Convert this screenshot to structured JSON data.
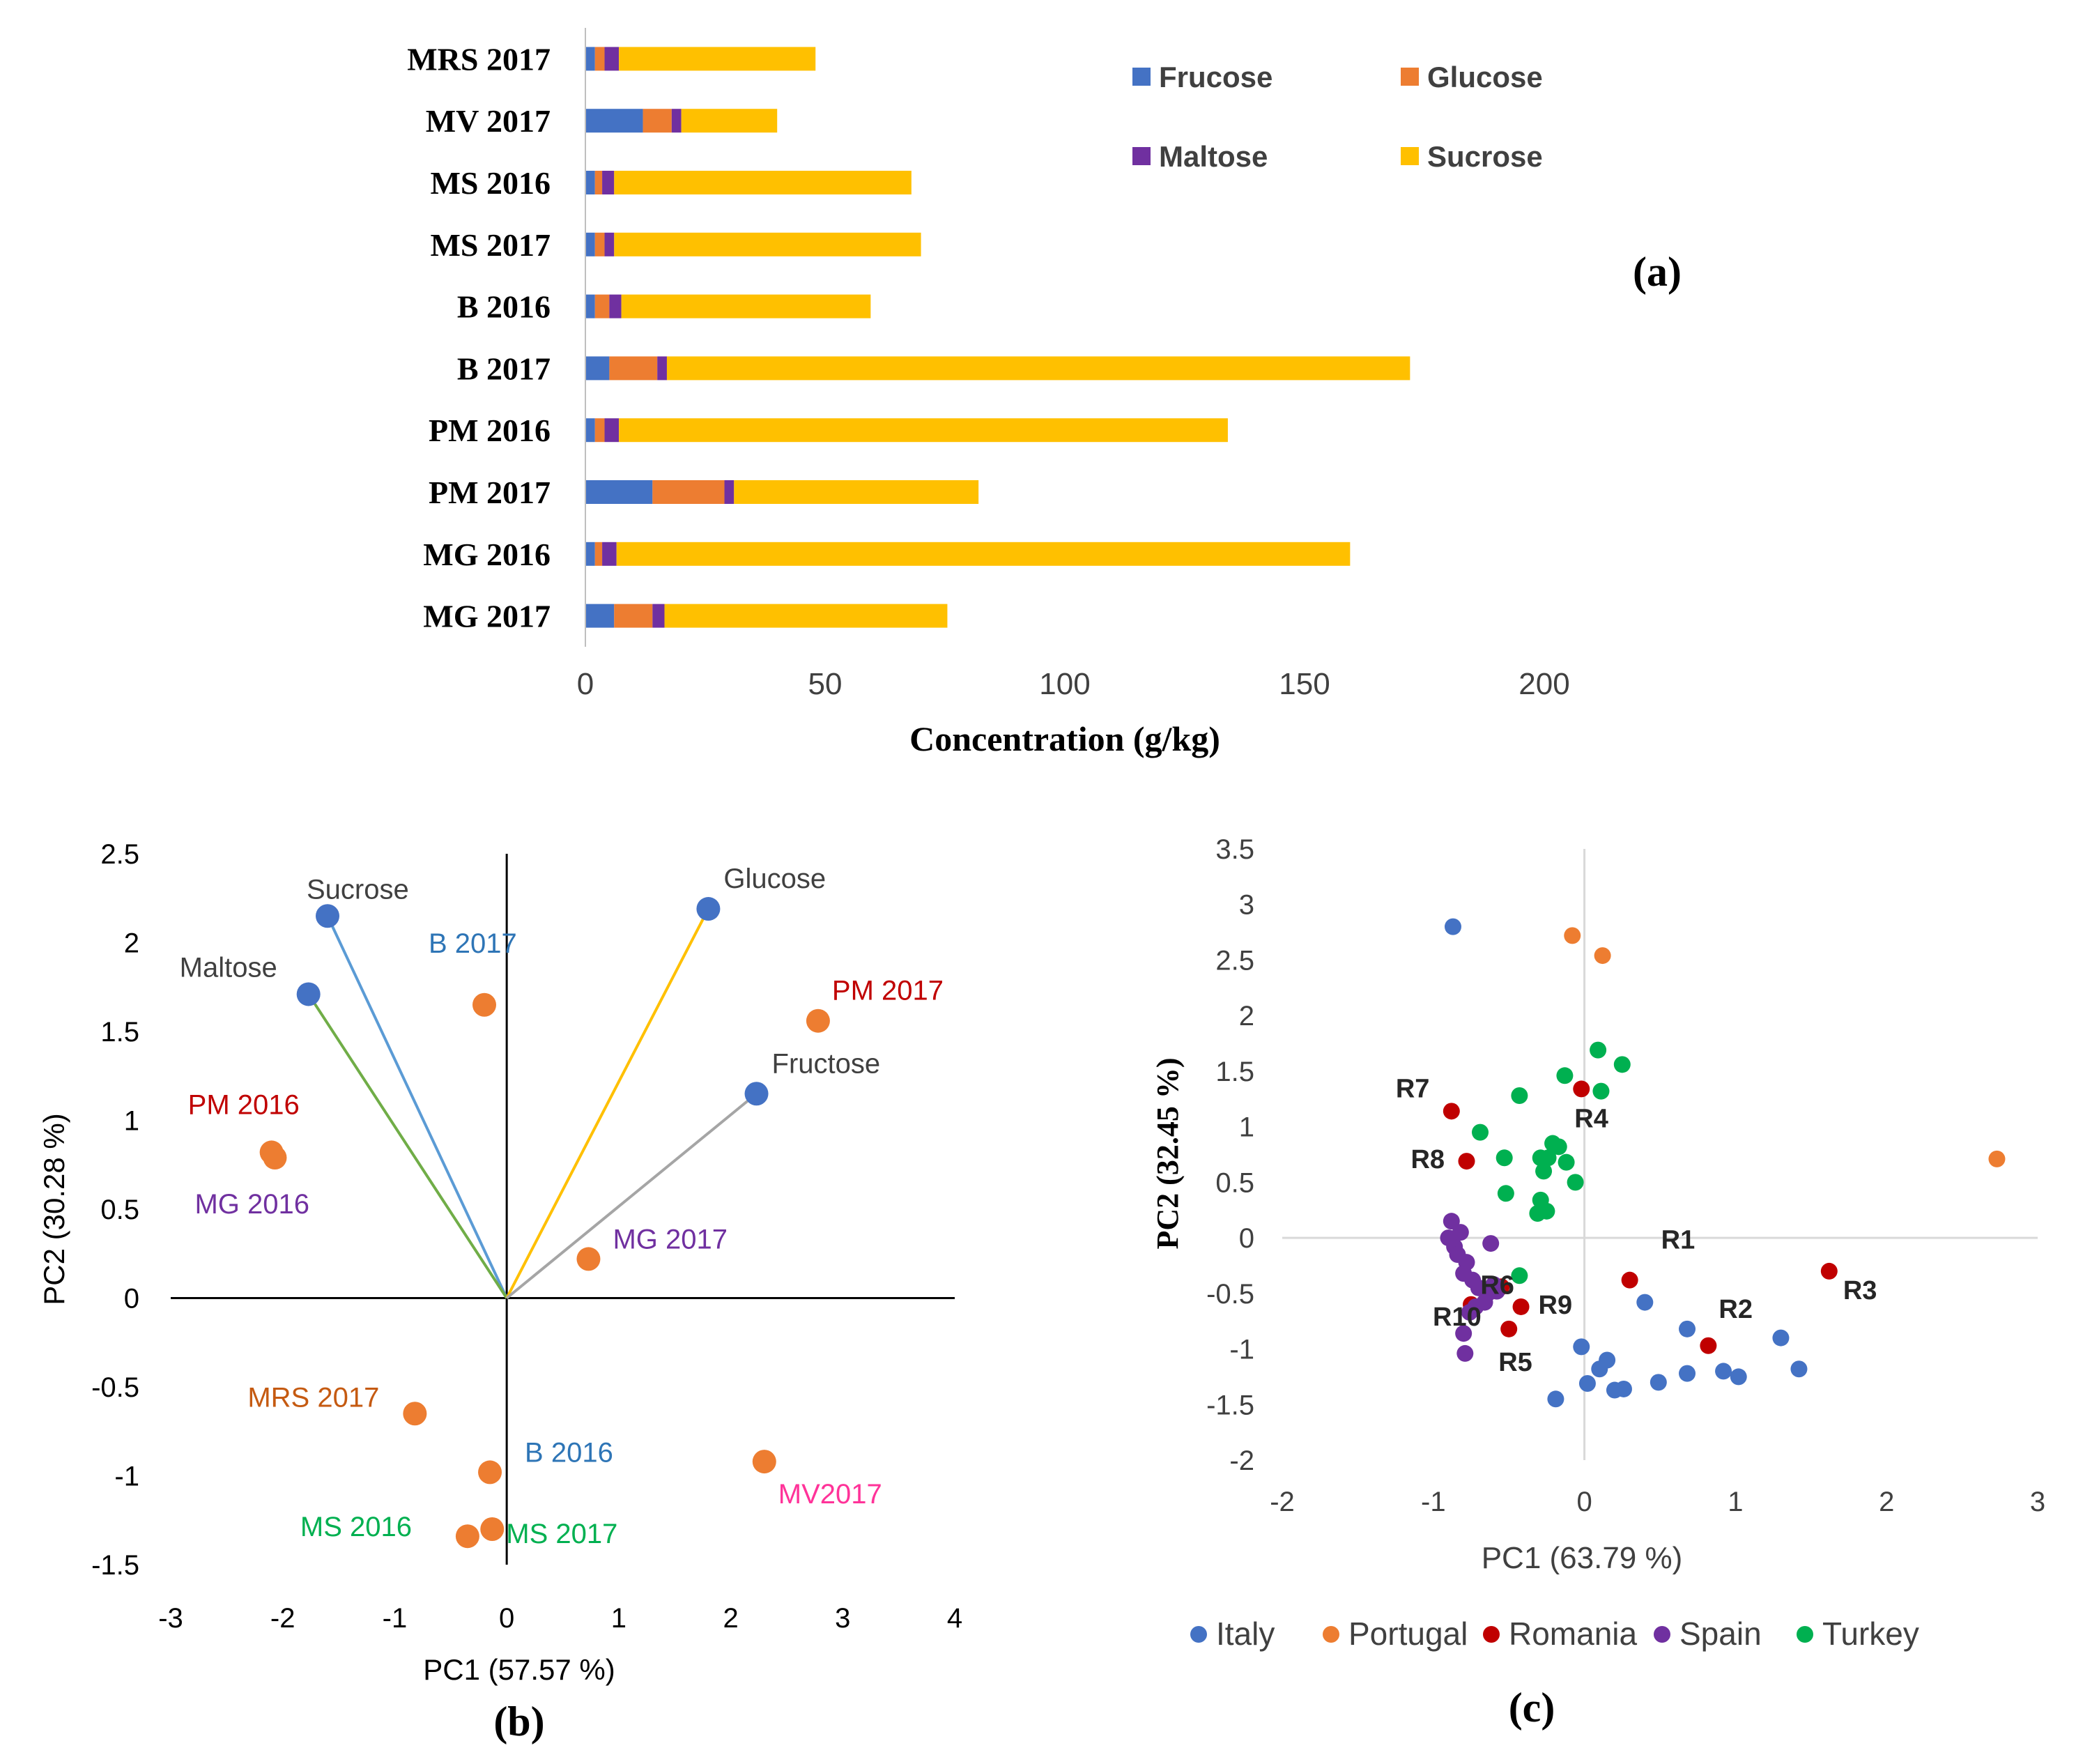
{
  "figure_labels": {
    "a": "(a)",
    "b": "(b)",
    "c": "(c)"
  },
  "chart_data": [
    {
      "id": "a",
      "type": "bar",
      "orientation": "horizontal",
      "stacked": true,
      "categories": [
        "MRS 2017",
        "MV 2017",
        "MS 2016",
        "MS 2017",
        "B 2016",
        "B 2017",
        "PM 2016",
        "PM 2017",
        "MG 2016",
        "MG 2017"
      ],
      "series": [
        {
          "name": "Frucose",
          "color": "#4472C4",
          "values": [
            2,
            12,
            2,
            2,
            2,
            5,
            2,
            14,
            2,
            6
          ]
        },
        {
          "name": "Glucose",
          "color": "#ED7D31",
          "values": [
            2,
            6,
            1.5,
            2,
            3,
            10,
            2,
            15,
            1.5,
            8
          ]
        },
        {
          "name": "Maltose",
          "color": "#7030A0",
          "values": [
            3,
            2,
            2.5,
            2,
            2.5,
            2,
            3,
            2,
            3,
            2.5
          ]
        },
        {
          "name": "Sucrose",
          "color": "#FFC000",
          "values": [
            41,
            20,
            62,
            64,
            52,
            155,
            127,
            51,
            153,
            59
          ]
        }
      ],
      "xlabel": "Concentration (g/kg)",
      "xlim": [
        0,
        200
      ],
      "xticks": [
        "0",
        "50",
        "100",
        "150",
        "200"
      ],
      "legend": "top-right, two columns"
    },
    {
      "id": "b",
      "type": "scatter",
      "title": "",
      "xlabel": "PC1 (57.57 %)",
      "ylabel": "PC2 (30.28 %)",
      "xlim": [
        -3,
        4
      ],
      "ylim": [
        -1.5,
        2.5
      ],
      "xticks": [
        "-3",
        "-2",
        "-1",
        "0",
        "1",
        "2",
        "3",
        "4"
      ],
      "yticks": [
        "-1.5",
        "-1",
        "-0.5",
        "0",
        "0.5",
        "1",
        "1.5",
        "2",
        "2.5"
      ],
      "loadings": [
        {
          "name": "Sucrose",
          "x": -1.6,
          "y": 2.15,
          "line_color": "#5B9BD5"
        },
        {
          "name": "Maltose",
          "x": -1.77,
          "y": 1.71,
          "line_color": "#70AD47"
        },
        {
          "name": "Glucose",
          "x": 1.8,
          "y": 2.19,
          "line_color": "#FFC000"
        },
        {
          "name": "Fructose",
          "x": 2.23,
          "y": 1.15,
          "line_color": "#A5A5A5"
        }
      ],
      "loading_marker_color": "#4472C4",
      "loading_label_color": "#404040",
      "samples": [
        {
          "label": "B 2017",
          "x": -0.2,
          "y": 1.65,
          "color": "#2E75B6"
        },
        {
          "label": "PM 2017",
          "x": 2.78,
          "y": 1.56,
          "color": "#C00000"
        },
        {
          "label": "PM 2016",
          "x": -2.1,
          "y": 0.82,
          "color": "#C00000"
        },
        {
          "label": "MG 2016",
          "x": -2.07,
          "y": 0.79,
          "color": "#7030A0"
        },
        {
          "label": "MG 2017",
          "x": 0.73,
          "y": 0.22,
          "color": "#7030A0"
        },
        {
          "label": "MRS 2017",
          "x": -0.82,
          "y": -0.65,
          "color": "#C55A11"
        },
        {
          "label": "B 2016",
          "x": -0.15,
          "y": -0.98,
          "color": "#2E75B6"
        },
        {
          "label": "MV2017",
          "x": 2.3,
          "y": -0.92,
          "color": "#FF3399"
        },
        {
          "label": "MS 2016",
          "x": -0.35,
          "y": -1.34,
          "color": "#00B050"
        },
        {
          "label": "MS 2017",
          "x": -0.13,
          "y": -1.3,
          "color": "#00B050"
        }
      ],
      "sample_marker_color": "#ED7D31"
    },
    {
      "id": "c",
      "type": "scatter",
      "xlabel": "PC1 (63.79 %)",
      "ylabel": "PC2 (32.45 %)",
      "xlim": [
        -2,
        3
      ],
      "ylim": [
        -2,
        3.5
      ],
      "xticks": [
        "-2",
        "-1",
        "0",
        "1",
        "2",
        "3"
      ],
      "yticks": [
        "-2",
        "-1.5",
        "-1",
        "-0.5",
        "0",
        "0.5",
        "1",
        "1.5",
        "2",
        "2.5",
        "3",
        "3.5"
      ],
      "legend": "bottom",
      "series": [
        {
          "name": "Italy",
          "color": "#4472C4",
          "points": [
            [
              -0.87,
              2.8
            ],
            [
              0.4,
              -0.58
            ],
            [
              0.68,
              -0.82
            ],
            [
              1.3,
              -0.9
            ],
            [
              1.42,
              -1.18
            ],
            [
              0.92,
              -1.2
            ],
            [
              1.02,
              -1.25
            ],
            [
              0.68,
              -1.22
            ],
            [
              0.49,
              -1.3
            ],
            [
              -0.02,
              -0.98
            ],
            [
              0.15,
              -1.1
            ],
            [
              0.1,
              -1.18
            ],
            [
              0.02,
              -1.31
            ],
            [
              0.2,
              -1.37
            ],
            [
              0.26,
              -1.36
            ],
            [
              -0.19,
              -1.45
            ]
          ]
        },
        {
          "name": "Portugal",
          "color": "#ED7D31",
          "points": [
            [
              -0.08,
              2.72
            ],
            [
              0.12,
              2.54
            ],
            [
              2.73,
              0.71
            ]
          ]
        },
        {
          "name": "Romania",
          "color": "#C00000",
          "points": [
            [
              -0.88,
              1.14
            ],
            [
              -0.78,
              0.69
            ],
            [
              -0.02,
              1.34
            ],
            [
              0.3,
              -0.38
            ],
            [
              1.62,
              -0.3
            ],
            [
              0.82,
              -0.97
            ],
            [
              -0.42,
              -0.62
            ],
            [
              -0.5,
              -0.82
            ],
            [
              -0.55,
              -0.44
            ],
            [
              -0.75,
              -0.6
            ]
          ]
        },
        {
          "name": "Spain",
          "color": "#7030A0",
          "points": [
            [
              -0.88,
              0.15
            ],
            [
              -0.9,
              0.0
            ],
            [
              -0.86,
              -0.08
            ],
            [
              -0.82,
              0.05
            ],
            [
              -0.84,
              -0.15
            ],
            [
              -0.78,
              -0.22
            ],
            [
              -0.8,
              -0.32
            ],
            [
              -0.74,
              -0.38
            ],
            [
              -0.7,
              -0.45
            ],
            [
              -0.64,
              -0.5
            ],
            [
              -0.6,
              -0.42
            ],
            [
              -0.66,
              -0.58
            ],
            [
              -0.72,
              -0.62
            ],
            [
              -0.76,
              -0.67
            ],
            [
              -0.8,
              -0.86
            ],
            [
              -0.79,
              -1.04
            ],
            [
              -0.62,
              -0.05
            ],
            [
              -0.58,
              -0.48
            ]
          ]
        },
        {
          "name": "Turkey",
          "color": "#00B050",
          "points": [
            [
              0.09,
              1.69
            ],
            [
              0.25,
              1.56
            ],
            [
              -0.13,
              1.46
            ],
            [
              0.11,
              1.32
            ],
            [
              -0.43,
              1.28
            ],
            [
              -0.69,
              0.95
            ],
            [
              -0.17,
              0.82
            ],
            [
              -0.21,
              0.85
            ],
            [
              -0.24,
              0.72
            ],
            [
              -0.29,
              0.72
            ],
            [
              -0.12,
              0.68
            ],
            [
              -0.27,
              0.6
            ],
            [
              -0.06,
              0.5
            ],
            [
              -0.53,
              0.72
            ],
            [
              -0.52,
              0.4
            ],
            [
              -0.29,
              0.34
            ],
            [
              -0.31,
              0.22
            ],
            [
              -0.25,
              0.24
            ],
            [
              -0.43,
              -0.34
            ]
          ]
        }
      ],
      "point_labels": [
        {
          "label": "R7",
          "x": -0.88,
          "y": 1.14
        },
        {
          "label": "R8",
          "x": -0.78,
          "y": 0.69
        },
        {
          "label": "R4",
          "x": -0.02,
          "y": 1.34
        },
        {
          "label": "R1",
          "x": 0.3,
          "y": -0.38
        },
        {
          "label": "R3",
          "x": 1.62,
          "y": -0.3
        },
        {
          "label": "R2",
          "x": 0.82,
          "y": -0.97
        },
        {
          "label": "R9",
          "x": -0.42,
          "y": -0.62
        },
        {
          "label": "R5",
          "x": -0.5,
          "y": -0.82
        },
        {
          "label": "R6",
          "x": -0.55,
          "y": -0.44
        },
        {
          "label": "R10",
          "x": -0.75,
          "y": -0.6
        }
      ]
    }
  ]
}
